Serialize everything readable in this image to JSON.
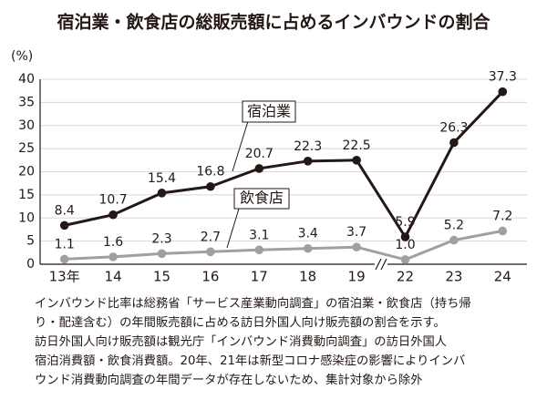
{
  "chart_data": {
    "type": "line",
    "title": "宿泊業・飲食店の総販売額に占めるインバウンドの割合",
    "y_label": "(%)",
    "categories": [
      "13年",
      "14",
      "15",
      "16",
      "17",
      "18",
      "19",
      "22",
      "23",
      "24"
    ],
    "series": [
      {
        "name": "宿泊業",
        "color": "#231815",
        "values": [
          8.4,
          10.7,
          15.4,
          16.8,
          20.7,
          22.3,
          22.5,
          5.9,
          26.3,
          37.3
        ]
      },
      {
        "name": "飲食店",
        "color": "#a0a0a0",
        "values": [
          1.1,
          1.6,
          2.3,
          2.7,
          3.1,
          3.4,
          3.7,
          1.0,
          5.2,
          7.2
        ],
        "value_labels": [
          "1.1",
          "1.6",
          "2.3",
          "2.7",
          "3.1",
          "3.4",
          "3.7",
          "1.0",
          "5.2",
          "7.2"
        ]
      }
    ],
    "ylim": [
      0,
      40
    ],
    "yticks": [
      0,
      5,
      10,
      15,
      20,
      25,
      30,
      35,
      40
    ],
    "grid": true,
    "note": [
      "インバウンド比率は総務省「サービス産業動向調査」の宿泊業・飲食店（持ち帰",
      "り・配達含む）の年間販売額に占める訪日外国人向け販売額の割合を示す。",
      "訪日外国人向け販売額は観光庁「インバウンド消費動向調査」の訪日外国人",
      "宿泊消費額・飲食消費額。20年、21年は新型コロナ感染症の影響によりインバ",
      "ウンド消費動向調査の年間データが存在しないため、集計対象から除外"
    ]
  }
}
